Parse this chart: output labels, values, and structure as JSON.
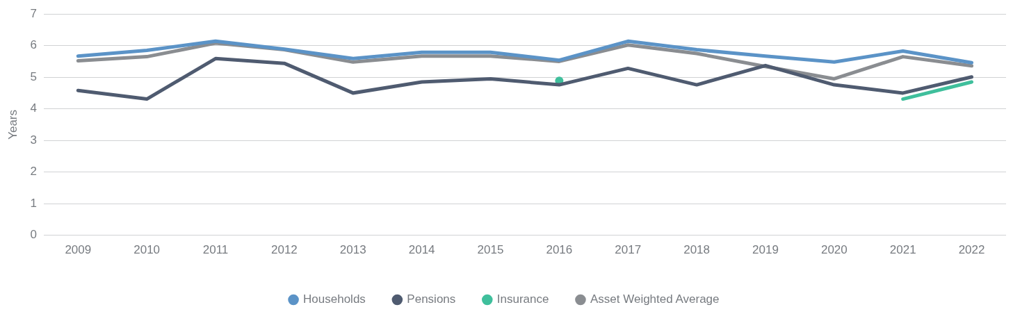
{
  "chart_data": {
    "type": "line",
    "ylabel": "Years",
    "categories": [
      "2009",
      "2010",
      "2011",
      "2012",
      "2013",
      "2014",
      "2015",
      "2016",
      "2017",
      "2018",
      "2019",
      "2020",
      "2021",
      "2022"
    ],
    "series": [
      {
        "name": "Households",
        "color": "#5b93c7",
        "values": [
          5.67,
          5.85,
          6.14,
          5.89,
          5.59,
          5.79,
          5.79,
          5.54,
          6.14,
          5.87,
          5.67,
          5.48,
          5.83,
          5.46
        ]
      },
      {
        "name": "Pensions",
        "color": "#4f5b70",
        "values": [
          4.58,
          4.31,
          5.59,
          5.44,
          4.5,
          4.85,
          4.95,
          4.76,
          5.28,
          4.76,
          5.37,
          4.76,
          4.5,
          5.01
        ]
      },
      {
        "name": "Insurance",
        "color": "#3fbf9c",
        "values": [
          null,
          null,
          null,
          null,
          null,
          null,
          null,
          4.89,
          null,
          null,
          null,
          null,
          4.31,
          4.85
        ]
      },
      {
        "name": "Asset Weighted Average",
        "color": "#8a8d91",
        "values": [
          5.52,
          5.65,
          6.08,
          5.87,
          5.48,
          5.67,
          5.67,
          5.5,
          6.02,
          5.75,
          5.34,
          4.95,
          5.65,
          5.36
        ]
      }
    ],
    "ylim": [
      0,
      7
    ],
    "yticks": [
      0,
      1,
      2,
      3,
      4,
      5,
      6,
      7
    ],
    "grid": "y",
    "legend": "bottom"
  }
}
